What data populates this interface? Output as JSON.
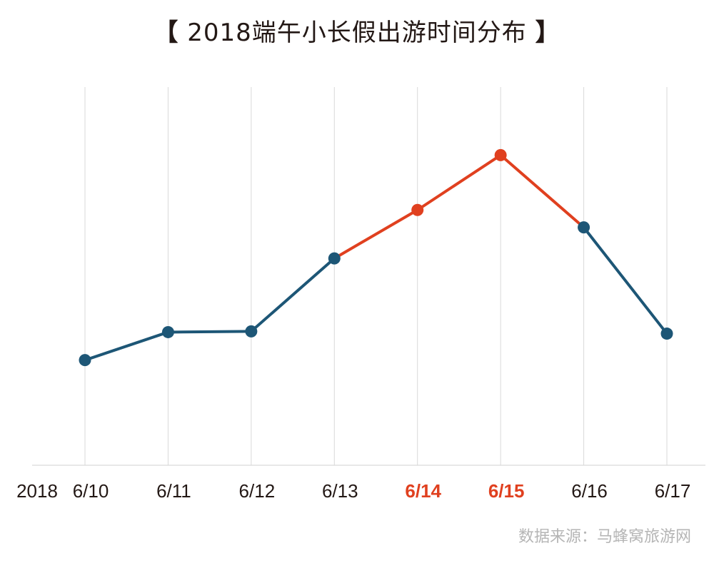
{
  "title": {
    "open": "【",
    "text": " 2018端午小长假出游时间分布 ",
    "close": "】"
  },
  "source": "数据来源：马蜂窝旅游网",
  "colors": {
    "series": "#1d5676",
    "highlight": "#e0401f",
    "grid": "#d9d9d9",
    "tick": "#231815"
  },
  "chart_data": {
    "type": "line",
    "year_label": "2018",
    "categories": [
      "6/10",
      "6/11",
      "6/12",
      "6/13",
      "6/14",
      "6/15",
      "6/16",
      "6/17"
    ],
    "highlight_categories": [
      "6/14",
      "6/15"
    ],
    "series": [
      {
        "values": [
          27.8,
          35.2,
          35.4,
          54.7,
          67.5,
          82.0,
          62.9,
          34.8
        ]
      }
    ],
    "ylim": [
      0,
      100
    ],
    "grid": "vertical",
    "legend": "none"
  }
}
